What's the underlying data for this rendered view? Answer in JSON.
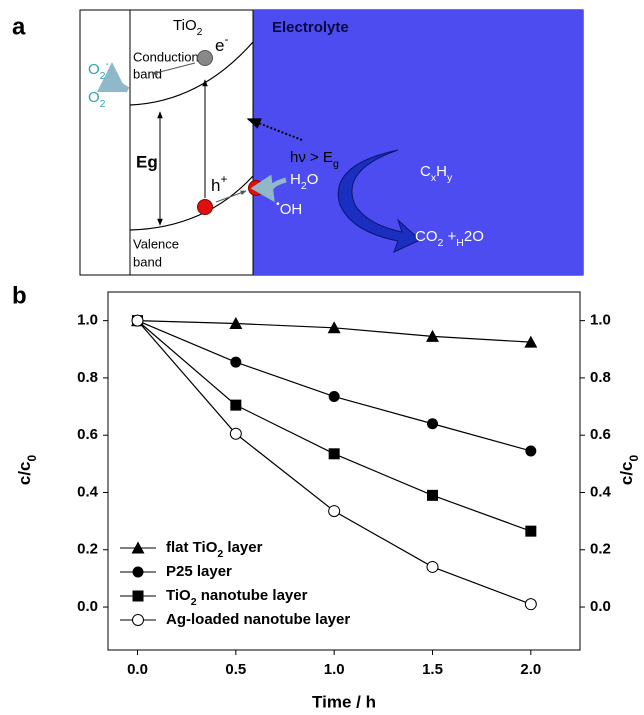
{
  "diagram": {
    "panel_label": "a",
    "tio2": "TiO2",
    "electrolyte": "Electrolyte",
    "conduction_band": [
      "Conduction",
      "band"
    ],
    "electron": "e-",
    "o2_minus": "O2-",
    "o2": "O2",
    "eg": "Eg",
    "photon": "hν > Eg",
    "hole": "h+",
    "h2o": "H2O",
    "oh": "•OH",
    "cxhy": "CxHy",
    "products": "CO2 +H2O",
    "valence_band": [
      "Valence",
      "band"
    ]
  },
  "chart_data": {
    "type": "line",
    "panel_label": "b",
    "xlabel": "Time / h",
    "ylabel": "c/c0",
    "y2label": "c/c0",
    "x": [
      0,
      0.5,
      1.0,
      1.5,
      2.0
    ],
    "series": [
      {
        "name": "flat TiO2 layer",
        "marker": "triangle",
        "color": "#000000",
        "values": [
          1.0,
          0.99,
          0.975,
          0.945,
          0.925
        ]
      },
      {
        "name": "P25 layer",
        "marker": "circle",
        "color": "#000000",
        "values": [
          1.0,
          0.855,
          0.735,
          0.64,
          0.545
        ]
      },
      {
        "name": "TiO2 nanotube layer",
        "marker": "square",
        "color": "#000000",
        "values": [
          1.0,
          0.705,
          0.535,
          0.39,
          0.265
        ]
      },
      {
        "name": "Ag-loaded nanotube layer",
        "marker": "open-circle",
        "color": "#000000",
        "values": [
          1.0,
          0.605,
          0.335,
          0.14,
          0.01
        ]
      }
    ],
    "xlim": [
      -0.15,
      2.25
    ],
    "xticks": [
      {
        "value": 0,
        "label": "0.0"
      },
      0.5,
      {
        "value": 1,
        "label": "1.0"
      },
      1.5,
      {
        "value": 2,
        "label": "2.0"
      }
    ],
    "ylim": [
      -0.15,
      1.1
    ],
    "yticks": [
      {
        "value": 0,
        "label": "0.0"
      },
      0.2,
      0.4,
      0.6,
      0.8,
      {
        "value": 1,
        "label": "1.0"
      }
    ],
    "y2lim": [
      -0.15,
      1.1
    ],
    "y2ticks": [
      {
        "value": 0,
        "label": "0.0"
      },
      0.2,
      0.4,
      0.6,
      0.8,
      {
        "value": 1,
        "label": "1.0"
      }
    ],
    "grid": false,
    "legend": "lower left"
  }
}
